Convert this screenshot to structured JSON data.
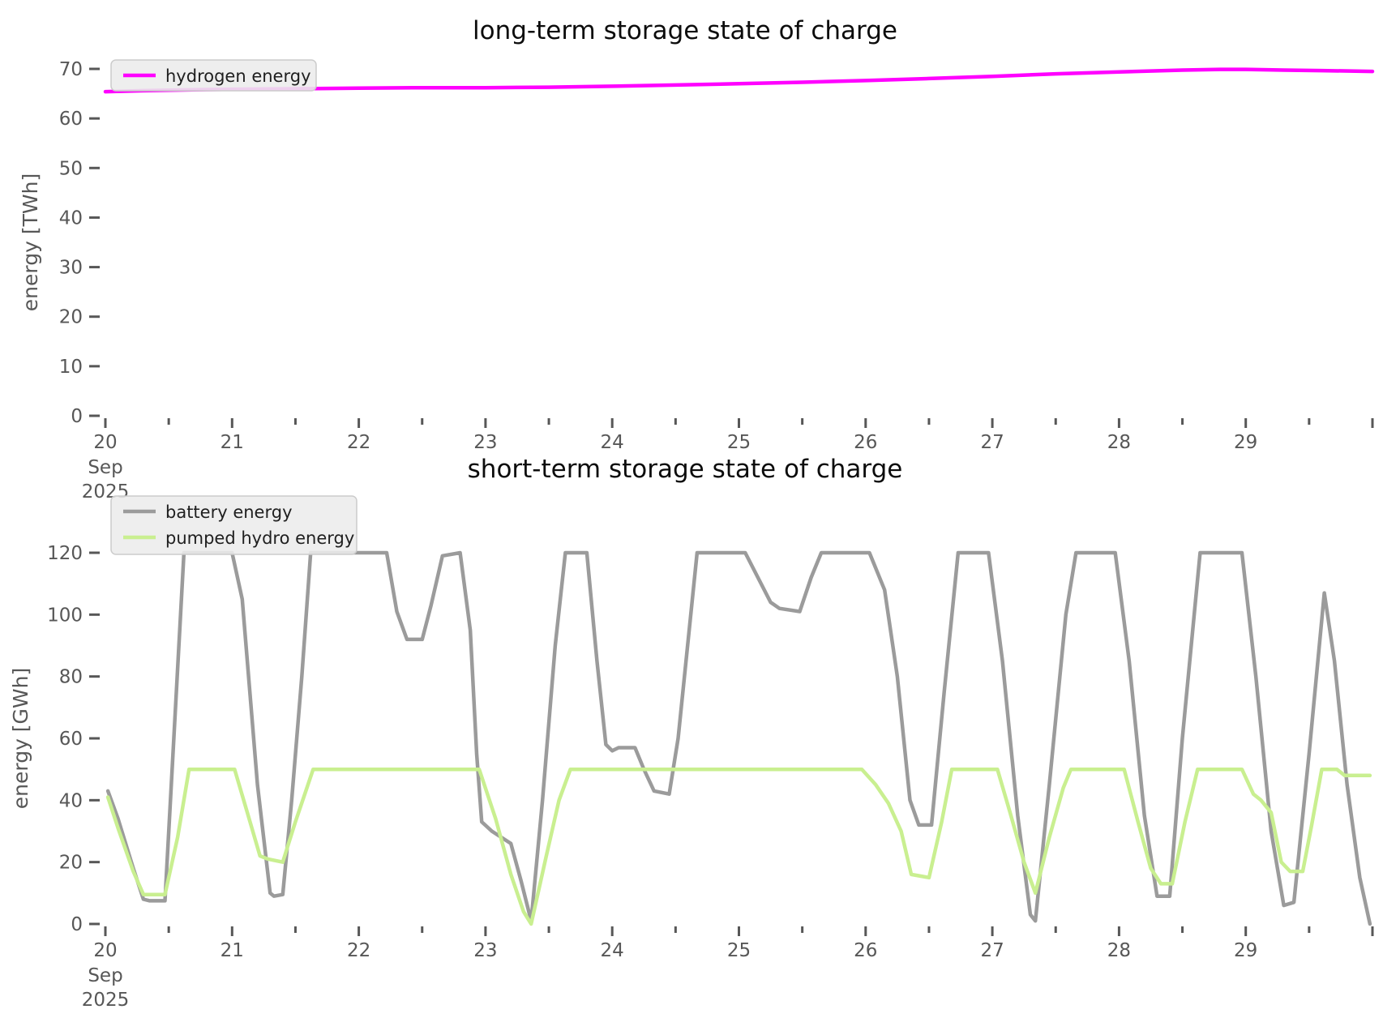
{
  "figure": {
    "background": "#ffffff",
    "tick_color": "#575757",
    "title_color": "#0c0c0c",
    "legend_background": "#ececec"
  },
  "chart_data": [
    {
      "type": "line",
      "title": "long-term storage state of charge",
      "ylabel": "energy [TWh]",
      "xlabel": "",
      "xlim": [
        20,
        30
      ],
      "ylim": [
        0,
        70
      ],
      "yticks": [
        0,
        10,
        20,
        30,
        40,
        50,
        60,
        70
      ],
      "xticks": [
        20,
        21,
        22,
        23,
        24,
        25,
        26,
        27,
        28,
        29,
        30
      ],
      "xticklabels": [
        "20",
        "21",
        "22",
        "23",
        "24",
        "25",
        "26",
        "27",
        "28",
        "29",
        ""
      ],
      "first_tick_sublabels": [
        "Sep",
        "2025"
      ],
      "x_minor_step": 0.5,
      "grid": false,
      "legend_loc": "upper left",
      "series": [
        {
          "name": "hydrogen energy",
          "color": "#ff00ff",
          "linewidth": 4.5,
          "x": [
            20.0,
            20.3,
            20.7,
            21.0,
            21.5,
            22.0,
            22.5,
            23.0,
            23.5,
            24.0,
            24.5,
            25.0,
            25.5,
            26.0,
            26.5,
            27.0,
            27.5,
            28.0,
            28.5,
            28.8,
            29.0,
            29.3,
            29.6,
            30.0
          ],
          "values": [
            65.4,
            65.6,
            65.8,
            65.9,
            66.0,
            66.1,
            66.2,
            66.2,
            66.3,
            66.5,
            66.75,
            67.0,
            67.3,
            67.65,
            68.05,
            68.5,
            69.0,
            69.4,
            69.75,
            69.9,
            69.9,
            69.75,
            69.65,
            69.5
          ]
        }
      ]
    },
    {
      "type": "line",
      "title": "short-term storage state of charge",
      "ylabel": "energy [GWh]",
      "xlabel": "",
      "xlim": [
        20,
        30
      ],
      "ylim": [
        0,
        120
      ],
      "yticks": [
        0,
        20,
        40,
        60,
        80,
        100,
        120
      ],
      "xticks": [
        20,
        21,
        22,
        23,
        24,
        25,
        26,
        27,
        28,
        29,
        30
      ],
      "xticklabels": [
        "20",
        "21",
        "22",
        "23",
        "24",
        "25",
        "26",
        "27",
        "28",
        "29",
        ""
      ],
      "first_tick_sublabels": [
        "Sep",
        "2025"
      ],
      "x_minor_step": 0.5,
      "grid": false,
      "legend_loc": "upper left",
      "series": [
        {
          "name": "battery energy",
          "color": "#9b9b9b",
          "linewidth": 4.5,
          "x": [
            20.02,
            20.1,
            20.22,
            20.3,
            20.35,
            20.47,
            20.62,
            21.0,
            21.08,
            21.2,
            21.3,
            21.33,
            21.4,
            21.47,
            21.55,
            21.62,
            22.22,
            22.3,
            22.38,
            22.5,
            22.57,
            22.66,
            22.8,
            22.88,
            22.93,
            22.97,
            23.05,
            23.2,
            23.28,
            23.36,
            23.45,
            23.55,
            23.63,
            23.8,
            23.88,
            23.95,
            24.0,
            24.05,
            24.18,
            24.25,
            24.33,
            24.45,
            24.52,
            24.67,
            25.05,
            25.15,
            25.25,
            25.32,
            25.48,
            25.57,
            25.65,
            26.03,
            26.15,
            26.25,
            26.35,
            26.42,
            26.52,
            26.62,
            26.73,
            26.97,
            27.08,
            27.2,
            27.3,
            27.34,
            27.45,
            27.58,
            27.66,
            27.97,
            28.08,
            28.2,
            28.3,
            28.4,
            28.5,
            28.64,
            28.97,
            29.08,
            29.2,
            29.3,
            29.38,
            29.5,
            29.62,
            29.7,
            29.8,
            29.9,
            29.98
          ],
          "values": [
            43,
            34,
            18,
            8,
            7.5,
            7.5,
            120,
            120,
            105,
            45,
            10,
            9,
            9.5,
            40,
            80,
            120,
            120,
            101,
            92,
            92,
            103,
            119,
            120,
            95,
            55,
            33,
            30,
            26,
            14,
            1,
            40,
            90,
            120,
            120,
            85,
            58,
            56,
            57,
            57,
            50,
            43,
            42,
            60,
            120,
            120,
            112,
            104,
            102,
            101,
            112,
            120,
            120,
            108,
            80,
            40,
            32,
            32,
            75,
            120,
            120,
            85,
            35,
            3,
            1,
            45,
            100,
            120,
            120,
            85,
            35,
            9,
            9,
            60,
            120,
            120,
            80,
            30,
            6,
            7,
            55,
            107,
            85,
            45,
            15,
            0
          ]
        },
        {
          "name": "pumped hydro energy",
          "color": "#c9ef90",
          "linewidth": 4.5,
          "x": [
            20.02,
            20.1,
            20.22,
            20.3,
            20.47,
            20.57,
            20.66,
            21.02,
            21.12,
            21.22,
            21.28,
            21.4,
            21.5,
            21.64,
            22.95,
            23.08,
            23.2,
            23.3,
            23.36,
            23.48,
            23.58,
            23.67,
            25.97,
            26.08,
            26.18,
            26.28,
            26.36,
            26.5,
            26.6,
            26.68,
            27.04,
            27.14,
            27.25,
            27.34,
            27.45,
            27.56,
            27.62,
            28.04,
            28.15,
            28.25,
            28.33,
            28.42,
            28.52,
            28.62,
            28.97,
            29.06,
            29.12,
            29.2,
            29.28,
            29.35,
            29.45,
            29.52,
            29.6,
            29.72,
            29.78,
            29.98
          ],
          "values": [
            41,
            31,
            17,
            9.5,
            9.5,
            28,
            50,
            50,
            36,
            22,
            21,
            20,
            33,
            50,
            50,
            34,
            16,
            4,
            0,
            22,
            40,
            50,
            50,
            45,
            39,
            30,
            16,
            15,
            33,
            50,
            50,
            36,
            20,
            10,
            28,
            44,
            50,
            50,
            33,
            18,
            13,
            13,
            33,
            50,
            50,
            42,
            40,
            36,
            20,
            17,
            17,
            32,
            50,
            50,
            48,
            48
          ]
        }
      ]
    }
  ]
}
